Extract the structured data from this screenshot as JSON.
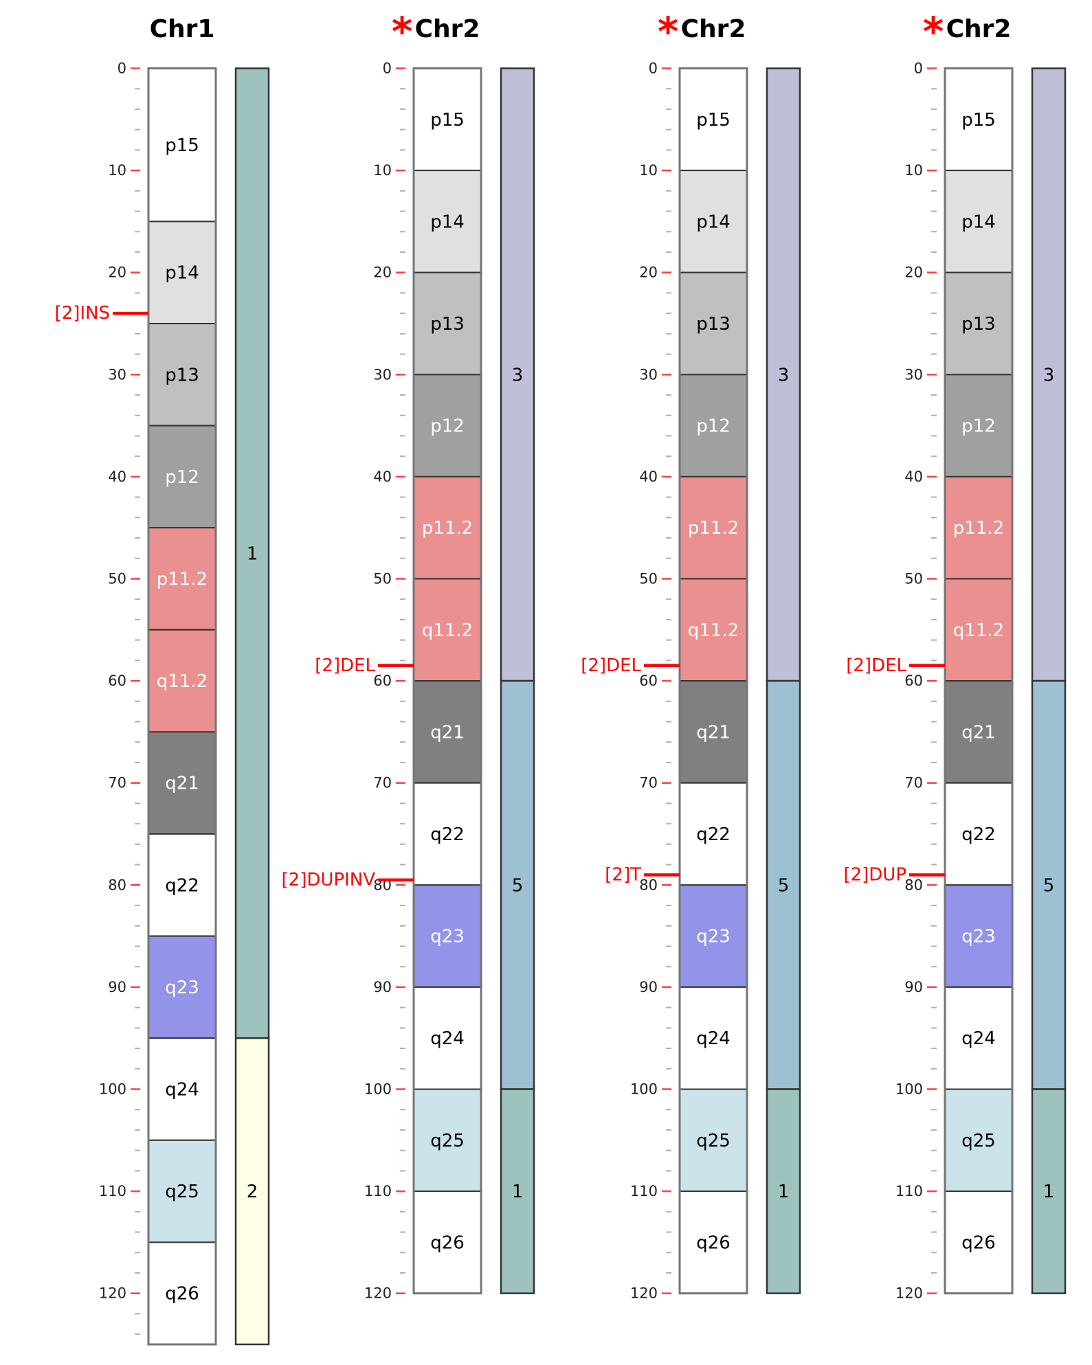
{
  "colors": {
    "band": {
      "white": "#ffffff",
      "gpos25": "#e0e0e0",
      "gpos50": "#c0c0c0",
      "gpos75": "#a0a0a0",
      "gpos100": "#808080",
      "acen": "#ea9090",
      "gvar": "#9393ea",
      "stalk": "#cce3ec"
    },
    "segment": {
      "1": "#9ec3bf",
      "2": "#fefee6",
      "3": "#bfbfd7",
      "5": "#9dc1d3"
    },
    "sv_marker": "#ff0000",
    "star": "#ff0000",
    "outline": "#757575"
  },
  "chromosomes": [
    {
      "title": "Chr1",
      "starred": false,
      "ticks": [
        "0",
        "10",
        "20",
        "30",
        "40",
        "50",
        "60",
        "70",
        "80",
        "90",
        "100",
        "110",
        "120"
      ],
      "max": 125,
      "bands": [
        {
          "name": "p15",
          "start": 0,
          "end": 15,
          "stain": "white"
        },
        {
          "name": "p14",
          "start": 15,
          "end": 25,
          "stain": "gpos25"
        },
        {
          "name": "p13",
          "start": 25,
          "end": 35,
          "stain": "gpos50"
        },
        {
          "name": "p12",
          "start": 35,
          "end": 45,
          "stain": "gpos75"
        },
        {
          "name": "p11.2",
          "start": 45,
          "end": 55,
          "stain": "acen"
        },
        {
          "name": "q11.2",
          "start": 55,
          "end": 65,
          "stain": "acen"
        },
        {
          "name": "q21",
          "start": 65,
          "end": 75,
          "stain": "gpos100"
        },
        {
          "name": "q22",
          "start": 75,
          "end": 85,
          "stain": "white"
        },
        {
          "name": "q23",
          "start": 85,
          "end": 95,
          "stain": "gvar"
        },
        {
          "name": "q24",
          "start": 95,
          "end": 105,
          "stain": "white"
        },
        {
          "name": "q25",
          "start": 105,
          "end": 115,
          "stain": "stalk"
        },
        {
          "name": "q26",
          "start": 115,
          "end": 125,
          "stain": "white"
        }
      ],
      "segments": [
        {
          "label": "1",
          "start": 0,
          "end": 95
        },
        {
          "label": "2",
          "start": 95,
          "end": 125
        }
      ],
      "markers": [
        {
          "label": "[2]INS",
          "position": 24
        }
      ]
    },
    {
      "title": "Chr2",
      "starred": true,
      "ticks": [
        "0",
        "10",
        "20",
        "30",
        "40",
        "50",
        "60",
        "70",
        "80",
        "90",
        "100",
        "110",
        "120"
      ],
      "max": 120,
      "bands": [
        {
          "name": "p15",
          "start": 0,
          "end": 10,
          "stain": "white"
        },
        {
          "name": "p14",
          "start": 10,
          "end": 20,
          "stain": "gpos25"
        },
        {
          "name": "p13",
          "start": 20,
          "end": 30,
          "stain": "gpos50"
        },
        {
          "name": "p12",
          "start": 30,
          "end": 40,
          "stain": "gpos75"
        },
        {
          "name": "p11.2",
          "start": 40,
          "end": 50,
          "stain": "acen"
        },
        {
          "name": "q11.2",
          "start": 50,
          "end": 60,
          "stain": "acen"
        },
        {
          "name": "q21",
          "start": 60,
          "end": 70,
          "stain": "gpos100"
        },
        {
          "name": "q22",
          "start": 70,
          "end": 80,
          "stain": "white"
        },
        {
          "name": "q23",
          "start": 80,
          "end": 90,
          "stain": "gvar"
        },
        {
          "name": "q24",
          "start": 90,
          "end": 100,
          "stain": "white"
        },
        {
          "name": "q25",
          "start": 100,
          "end": 110,
          "stain": "stalk"
        },
        {
          "name": "q26",
          "start": 110,
          "end": 120,
          "stain": "white"
        }
      ],
      "segments": [
        {
          "label": "3",
          "start": 0,
          "end": 60
        },
        {
          "label": "5",
          "start": 60,
          "end": 100
        },
        {
          "label": "1",
          "start": 100,
          "end": 120
        }
      ],
      "markers": [
        {
          "label": "[2]DEL",
          "position": 58.5
        },
        {
          "label": "[2]DUPINV",
          "position": 79.5
        }
      ]
    },
    {
      "title": "Chr2",
      "starred": true,
      "ticks": [
        "0",
        "10",
        "20",
        "30",
        "40",
        "50",
        "60",
        "70",
        "80",
        "90",
        "100",
        "110",
        "120"
      ],
      "max": 120,
      "bands": [
        {
          "name": "p15",
          "start": 0,
          "end": 10,
          "stain": "white"
        },
        {
          "name": "p14",
          "start": 10,
          "end": 20,
          "stain": "gpos25"
        },
        {
          "name": "p13",
          "start": 20,
          "end": 30,
          "stain": "gpos50"
        },
        {
          "name": "p12",
          "start": 30,
          "end": 40,
          "stain": "gpos75"
        },
        {
          "name": "p11.2",
          "start": 40,
          "end": 50,
          "stain": "acen"
        },
        {
          "name": "q11.2",
          "start": 50,
          "end": 60,
          "stain": "acen"
        },
        {
          "name": "q21",
          "start": 60,
          "end": 70,
          "stain": "gpos100"
        },
        {
          "name": "q22",
          "start": 70,
          "end": 80,
          "stain": "white"
        },
        {
          "name": "q23",
          "start": 80,
          "end": 90,
          "stain": "gvar"
        },
        {
          "name": "q24",
          "start": 90,
          "end": 100,
          "stain": "white"
        },
        {
          "name": "q25",
          "start": 100,
          "end": 110,
          "stain": "stalk"
        },
        {
          "name": "q26",
          "start": 110,
          "end": 120,
          "stain": "white"
        }
      ],
      "segments": [
        {
          "label": "3",
          "start": 0,
          "end": 60
        },
        {
          "label": "5",
          "start": 60,
          "end": 100
        },
        {
          "label": "1",
          "start": 100,
          "end": 120
        }
      ],
      "markers": [
        {
          "label": "[2]DEL",
          "position": 58.5
        },
        {
          "label": "[2]T",
          "position": 79
        }
      ]
    },
    {
      "title": "Chr2",
      "starred": true,
      "ticks": [
        "0",
        "10",
        "20",
        "30",
        "40",
        "50",
        "60",
        "70",
        "80",
        "90",
        "100",
        "110",
        "120"
      ],
      "max": 120,
      "bands": [
        {
          "name": "p15",
          "start": 0,
          "end": 10,
          "stain": "white"
        },
        {
          "name": "p14",
          "start": 10,
          "end": 20,
          "stain": "gpos25"
        },
        {
          "name": "p13",
          "start": 20,
          "end": 30,
          "stain": "gpos50"
        },
        {
          "name": "p12",
          "start": 30,
          "end": 40,
          "stain": "gpos75"
        },
        {
          "name": "p11.2",
          "start": 40,
          "end": 50,
          "stain": "acen"
        },
        {
          "name": "q11.2",
          "start": 50,
          "end": 60,
          "stain": "acen"
        },
        {
          "name": "q21",
          "start": 60,
          "end": 70,
          "stain": "gpos100"
        },
        {
          "name": "q22",
          "start": 70,
          "end": 80,
          "stain": "white"
        },
        {
          "name": "q23",
          "start": 80,
          "end": 90,
          "stain": "gvar"
        },
        {
          "name": "q24",
          "start": 90,
          "end": 100,
          "stain": "white"
        },
        {
          "name": "q25",
          "start": 100,
          "end": 110,
          "stain": "stalk"
        },
        {
          "name": "q26",
          "start": 110,
          "end": 120,
          "stain": "white"
        }
      ],
      "segments": [
        {
          "label": "3",
          "start": 0,
          "end": 60
        },
        {
          "label": "5",
          "start": 60,
          "end": 100
        },
        {
          "label": "1",
          "start": 100,
          "end": 120
        }
      ],
      "markers": [
        {
          "label": "[2]DEL",
          "position": 58.5
        },
        {
          "label": "[2]DUP",
          "position": 79
        }
      ]
    }
  ]
}
